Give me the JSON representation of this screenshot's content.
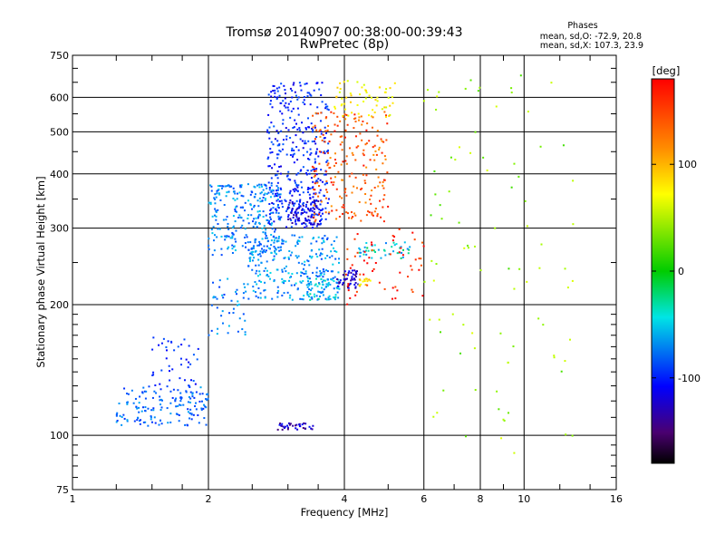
{
  "chart_data": {
    "type": "scatter",
    "title": "Tromsø 20140907 00:38:00-00:39:43",
    "subtitle": "RwPretec (8p)",
    "stats_header": "Phases",
    "stats_lines": [
      "mean, sd,O: -72.9, 20.8",
      "mean, sd,X: 107.3, 23.9"
    ],
    "xlabel": "Frequency [MHz]",
    "ylabel": "Stationary phase Virtual Height [km]",
    "x_scale": "log2",
    "y_scale": "log",
    "xlim": [
      1,
      16
    ],
    "ylim": [
      75,
      750
    ],
    "x_ticks": [
      1,
      2,
      4,
      6,
      8,
      10,
      16
    ],
    "x_tick_labels": [
      "1",
      "2",
      "4",
      "6",
      "8",
      "10",
      "16"
    ],
    "y_ticks": [
      75,
      100,
      200,
      300,
      400,
      500,
      600,
      750
    ],
    "y_tick_labels": [
      "75",
      "100",
      "200",
      "300",
      "400",
      "500",
      "600",
      "750"
    ],
    "grid": true,
    "colorbar": {
      "label": "[deg]",
      "range": [
        -180,
        180
      ],
      "ticks": [
        100,
        0,
        -100
      ],
      "tick_labels": [
        "100",
        "0",
        "-100"
      ]
    },
    "clusters": [
      {
        "name": "lower-blue-trace",
        "x": [
          1.25,
          2.0
        ],
        "y": [
          105,
          130
        ],
        "phase": -70,
        "n": 150
      },
      {
        "name": "lower-blue-rising",
        "x": [
          1.5,
          1.9
        ],
        "y": [
          125,
          170
        ],
        "phase": -90,
        "n": 45
      },
      {
        "name": "e-layer-blue",
        "x": [
          2.0,
          2.45
        ],
        "y": [
          170,
          230
        ],
        "phase": -65,
        "n": 45
      },
      {
        "name": "dark-blue-100km",
        "x": [
          2.85,
          3.45
        ],
        "y": [
          103,
          107
        ],
        "phase": -125,
        "n": 35
      },
      {
        "name": "f1-cyan-dense",
        "x": [
          2.45,
          3.9
        ],
        "y": [
          205,
          290
        ],
        "phase": -55,
        "n": 260
      },
      {
        "name": "f1-cyan-band",
        "x": [
          3.3,
          3.9
        ],
        "y": [
          205,
          230
        ],
        "phase": -40,
        "n": 60
      },
      {
        "name": "f1-dark-patch",
        "x": [
          3.85,
          4.3
        ],
        "y": [
          218,
          240
        ],
        "phase": -125,
        "n": 45
      },
      {
        "name": "f1-yellow",
        "x": [
          4.3,
          4.6
        ],
        "y": [
          220,
          230
        ],
        "phase": 95,
        "n": 14
      },
      {
        "name": "f2-blue-left",
        "x": [
          2.0,
          2.9
        ],
        "y": [
          260,
          380
        ],
        "phase": -60,
        "n": 280
      },
      {
        "name": "f2-blue-center",
        "x": [
          2.7,
          3.7
        ],
        "y": [
          300,
          650
        ],
        "phase": -95,
        "n": 380
      },
      {
        "name": "f2-dark-core",
        "x": [
          3.0,
          3.55
        ],
        "y": [
          305,
          350
        ],
        "phase": -120,
        "n": 90
      },
      {
        "name": "f2-orange-arc",
        "x": [
          3.4,
          5.0
        ],
        "y": [
          310,
          560
        ],
        "phase": 150,
        "n": 220
      },
      {
        "name": "f2-mixed-top",
        "x": [
          3.8,
          5.2
        ],
        "y": [
          540,
          660
        ],
        "phase": 80,
        "n": 60
      },
      {
        "name": "mid-cyan-right",
        "x": [
          4.3,
          5.6
        ],
        "y": [
          255,
          280
        ],
        "phase": -35,
        "n": 45
      },
      {
        "name": "mid-orange-right",
        "x": [
          4.0,
          6.0
        ],
        "y": [
          200,
          300
        ],
        "phase": 170,
        "n": 60
      },
      {
        "name": "sparse-high-freq",
        "x": [
          6.0,
          13.0
        ],
        "y": [
          90,
          680
        ],
        "phase": 40,
        "n": 90
      }
    ]
  }
}
